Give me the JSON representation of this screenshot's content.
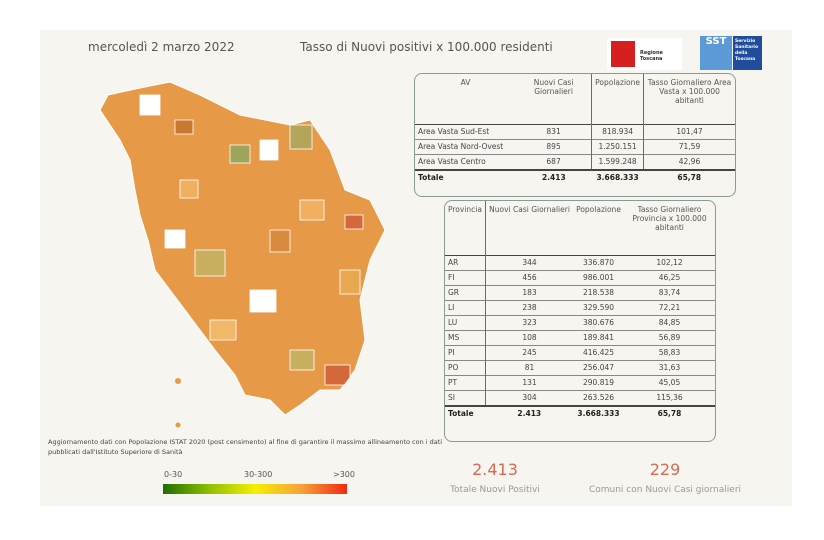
{
  "header": {
    "date": "mercoledì 2 marzo 2022",
    "title": "Tasso di Nuovi positivi x 100.000 residenti"
  },
  "logos": {
    "regione": "Regione Toscana",
    "sst_short": "SST",
    "sst_full": "Servizio Sanitario della Toscana"
  },
  "av_table": {
    "headers": [
      "AV",
      "Nuovi Casi Giornalieri",
      "Popolazione",
      "Tasso Giornaliero Area Vasta x 100.000 abitanti"
    ],
    "rows": [
      [
        "Area Vasta Sud-Est",
        "831",
        "818.934",
        "101,47"
      ],
      [
        "Area Vasta Nord-Ovest",
        "895",
        "1.250.151",
        "71,59"
      ],
      [
        "Area Vasta Centro",
        "687",
        "1.599.248",
        "42,96"
      ]
    ],
    "total": [
      "Totale",
      "2.413",
      "3.668.333",
      "65,78"
    ]
  },
  "prov_table": {
    "headers": [
      "Provincia",
      "Nuovi Casi Giornalieri",
      "Popolazione",
      "Tasso Giornaliero Provincia x 100.000 abitanti"
    ],
    "rows": [
      [
        "AR",
        "344",
        "336.870",
        "102,12"
      ],
      [
        "FI",
        "456",
        "986.001",
        "46,25"
      ],
      [
        "GR",
        "183",
        "218.538",
        "83,74"
      ],
      [
        "LI",
        "238",
        "329.590",
        "72,21"
      ],
      [
        "LU",
        "323",
        "380.676",
        "84,85"
      ],
      [
        "MS",
        "108",
        "189.841",
        "56,89"
      ],
      [
        "PI",
        "245",
        "416.425",
        "58,83"
      ],
      [
        "PO",
        "81",
        "256.047",
        "31,63"
      ],
      [
        "PT",
        "131",
        "290.819",
        "45,05"
      ],
      [
        "SI",
        "304",
        "263.526",
        "115,36"
      ]
    ],
    "total": [
      "Totale",
      "2.413",
      "3.668.333",
      "65,78"
    ]
  },
  "kpis": [
    {
      "value": "2.413",
      "label": "Totale Nuovi Positivi"
    },
    {
      "value": "229",
      "label": "Comuni con Nuovi Casi giornalieri"
    }
  ],
  "note": "Aggiornamento dati con Popolazione ISTAT 2020 (post censimento) al fine di garantire il massimo allineamento con i dati pubblicati dall'Istituto Superiore di Sanità",
  "legend": {
    "low": "0-30",
    "mid": "30-300",
    "high": ">300",
    "colors": [
      "#1f6e00",
      "#f5ef00",
      "#f02a10"
    ]
  },
  "colors": {
    "accent_line": "#2e8b6e",
    "kpi": "#d66a55"
  }
}
